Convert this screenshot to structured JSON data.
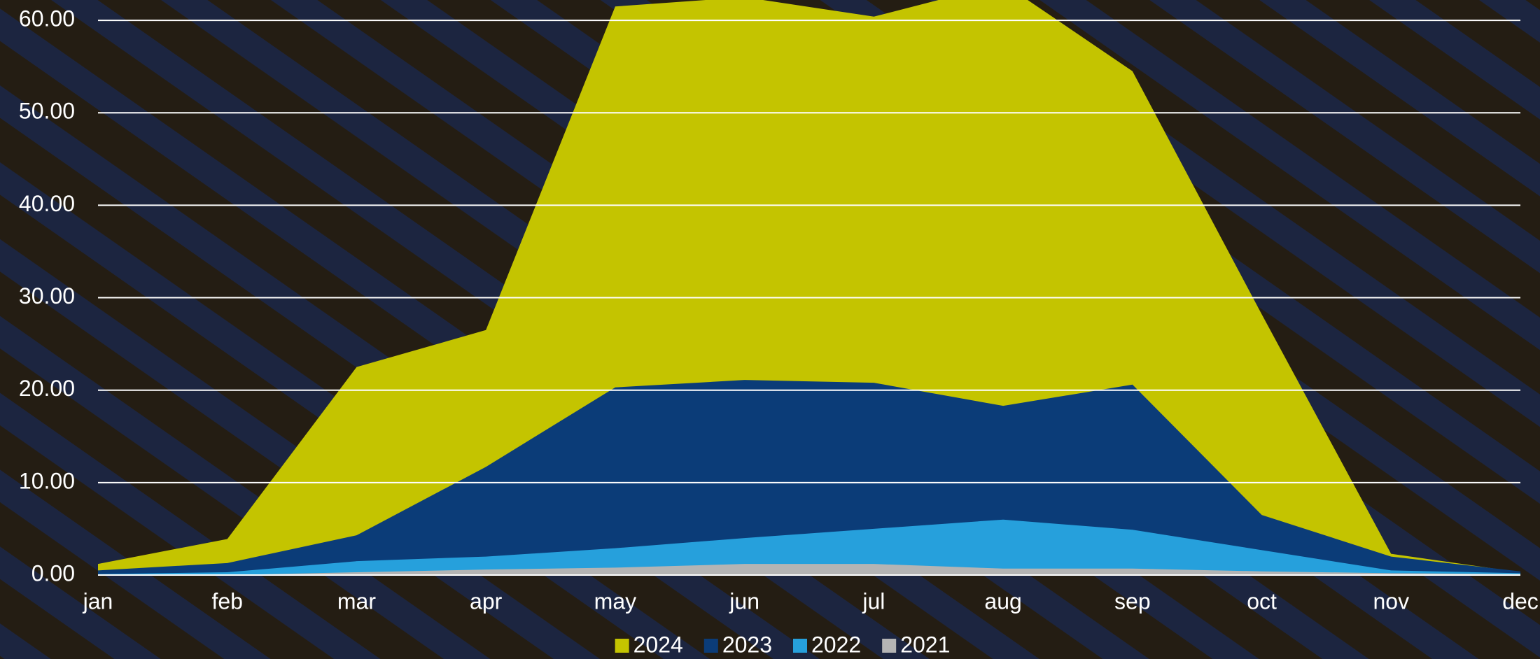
{
  "chart_data": {
    "type": "area",
    "categories": [
      "jan",
      "feb",
      "mar",
      "apr",
      "may",
      "jun",
      "jul",
      "aug",
      "sep",
      "oct",
      "nov",
      "dec"
    ],
    "series": [
      {
        "name": "2024",
        "color": "#c4c400",
        "values": [
          1.2,
          3.9,
          22.5,
          26.5,
          61.5,
          62.5,
          60.4,
          64,
          54.5,
          28.2,
          2.3,
          0.3
        ]
      },
      {
        "name": "2023",
        "color": "#0b3c78",
        "values": [
          0.5,
          1.3,
          4.3,
          11.7,
          20.3,
          21.1,
          20.8,
          18.3,
          20.6,
          6.5,
          2.0,
          0.4
        ]
      },
      {
        "name": "2022",
        "color": "#26a0dc",
        "values": [
          0.1,
          0.3,
          1.5,
          2.0,
          2.9,
          4.0,
          5.0,
          6.0,
          4.9,
          2.7,
          0.5,
          0.2
        ]
      },
      {
        "name": "2021",
        "color": "#b4b4b4",
        "values": [
          0,
          0,
          0.3,
          0.6,
          0.8,
          1.2,
          1.2,
          0.7,
          0.7,
          0.4,
          0.2,
          0.1
        ]
      }
    ],
    "ylim": [
      0,
      62.2
    ],
    "yticks": [
      {
        "value": 0,
        "label": "0.00"
      },
      {
        "value": 10,
        "label": "10.00"
      },
      {
        "value": 20,
        "label": "20.00"
      },
      {
        "value": 30,
        "label": "30.00"
      },
      {
        "value": 40,
        "label": "40.00"
      },
      {
        "value": 50,
        "label": "50.00"
      },
      {
        "value": 60,
        "label": "60.00"
      }
    ],
    "grid": true
  }
}
